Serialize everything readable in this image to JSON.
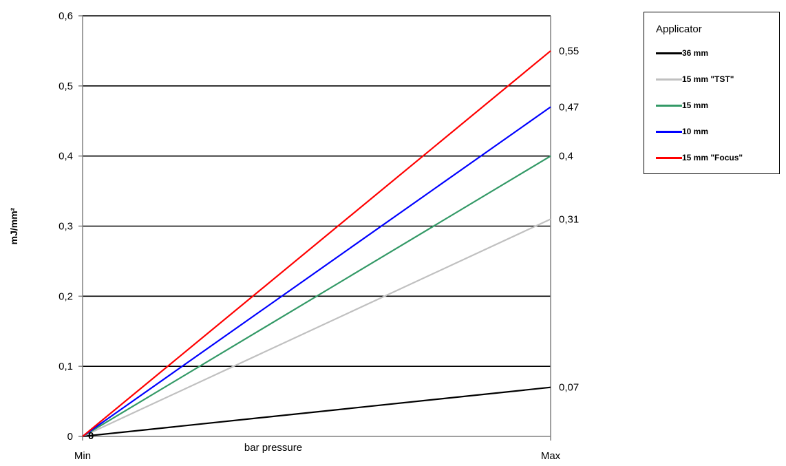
{
  "chart_data": {
    "type": "line",
    "title": "",
    "xlabel": "bar pressure",
    "ylabel": "mJ/mm²",
    "x_categories": [
      "Min",
      "Max"
    ],
    "ylim": [
      0,
      0.6
    ],
    "y_ticks": [
      "0",
      "0,1",
      "0,2",
      "0,3",
      "0,4",
      "0,5",
      "0,6"
    ],
    "y_tick_values": [
      0,
      0.1,
      0.2,
      0.3,
      0.4,
      0.5,
      0.6
    ],
    "grid": true,
    "legend": {
      "title": "Applicator",
      "position": "right"
    },
    "start_label": "0",
    "series": [
      {
        "name": "36 mm",
        "color": "#000000",
        "values": [
          0,
          0.07
        ],
        "end_label": "0,07"
      },
      {
        "name": "15 mm \"TST\"",
        "color": "#c0c0c0",
        "values": [
          0,
          0.31
        ],
        "end_label": "0,31"
      },
      {
        "name": "15 mm",
        "color": "#339966",
        "values": [
          0,
          0.4
        ],
        "end_label": "0,4"
      },
      {
        "name": "10 mm",
        "color": "#0000ff",
        "values": [
          0,
          0.47
        ],
        "end_label": "0,47"
      },
      {
        "name": "15 mm \"Focus\"",
        "color": "#ff0000",
        "values": [
          0,
          0.55
        ],
        "end_label": "0,55"
      }
    ]
  }
}
